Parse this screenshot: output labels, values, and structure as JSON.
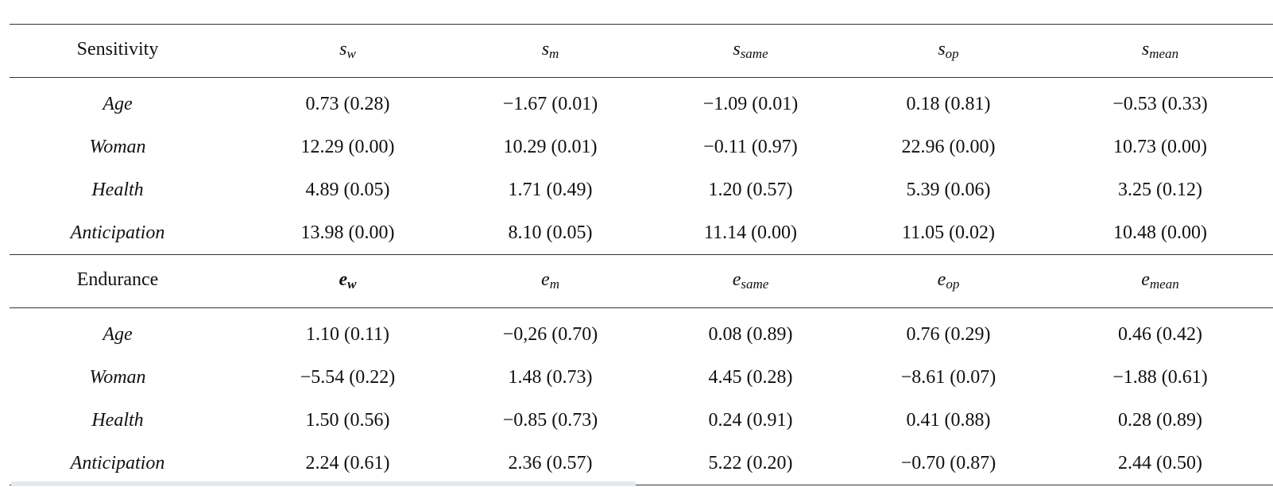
{
  "sections": [
    {
      "title": "Sensitivity",
      "columns": [
        {
          "base": "s",
          "sub": "w",
          "bold": false
        },
        {
          "base": "s",
          "sub": "m",
          "bold": false
        },
        {
          "base": "s",
          "sub": "same",
          "bold": false
        },
        {
          "base": "s",
          "sub": "op",
          "bold": false
        },
        {
          "base": "s",
          "sub": "mean",
          "bold": false
        }
      ],
      "rows": [
        {
          "label": "Age",
          "cells": [
            "0.73 (0.28)",
            "−1.67 (0.01)",
            "−1.09 (0.01)",
            "0.18 (0.81)",
            "−0.53 (0.33)"
          ]
        },
        {
          "label": "Woman",
          "cells": [
            "12.29 (0.00)",
            "10.29 (0.01)",
            "−0.11 (0.97)",
            "22.96 (0.00)",
            "10.73 (0.00)"
          ]
        },
        {
          "label": "Health",
          "cells": [
            "4.89 (0.05)",
            "1.71 (0.49)",
            "1.20 (0.57)",
            "5.39 (0.06)",
            "3.25 (0.12)"
          ]
        },
        {
          "label": "Anticipation",
          "cells": [
            "13.98 (0.00)",
            "8.10 (0.05)",
            "11.14 (0.00)",
            "11.05 (0.02)",
            "10.48 (0.00)"
          ]
        }
      ]
    },
    {
      "title": "Endurance",
      "columns": [
        {
          "base": "e",
          "sub": "w",
          "bold": true
        },
        {
          "base": "e",
          "sub": "m",
          "bold": false
        },
        {
          "base": "e",
          "sub": "same",
          "bold": false
        },
        {
          "base": "e",
          "sub": "op",
          "bold": false
        },
        {
          "base": "e",
          "sub": "mean",
          "bold": false
        }
      ],
      "rows": [
        {
          "label": "Age",
          "cells": [
            "1.10 (0.11)",
            "−0,26 (0.70)",
            "0.08 (0.89)",
            "0.76 (0.29)",
            "0.46 (0.42)"
          ]
        },
        {
          "label": "Woman",
          "cells": [
            "−5.54 (0.22)",
            "1.48 (0.73)",
            "4.45 (0.28)",
            "−8.61 (0.07)",
            "−1.88 (0.61)"
          ]
        },
        {
          "label": "Health",
          "cells": [
            "1.50 (0.56)",
            "−0.85 (0.73)",
            "0.24 (0.91)",
            "0.41 (0.88)",
            "0.28 (0.89)"
          ]
        },
        {
          "label": "Anticipation",
          "cells": [
            "2.24 (0.61)",
            "2.36 (0.57)",
            "5.22 (0.20)",
            "−0.70 (0.87)",
            "2.44 (0.50)"
          ]
        }
      ]
    }
  ]
}
